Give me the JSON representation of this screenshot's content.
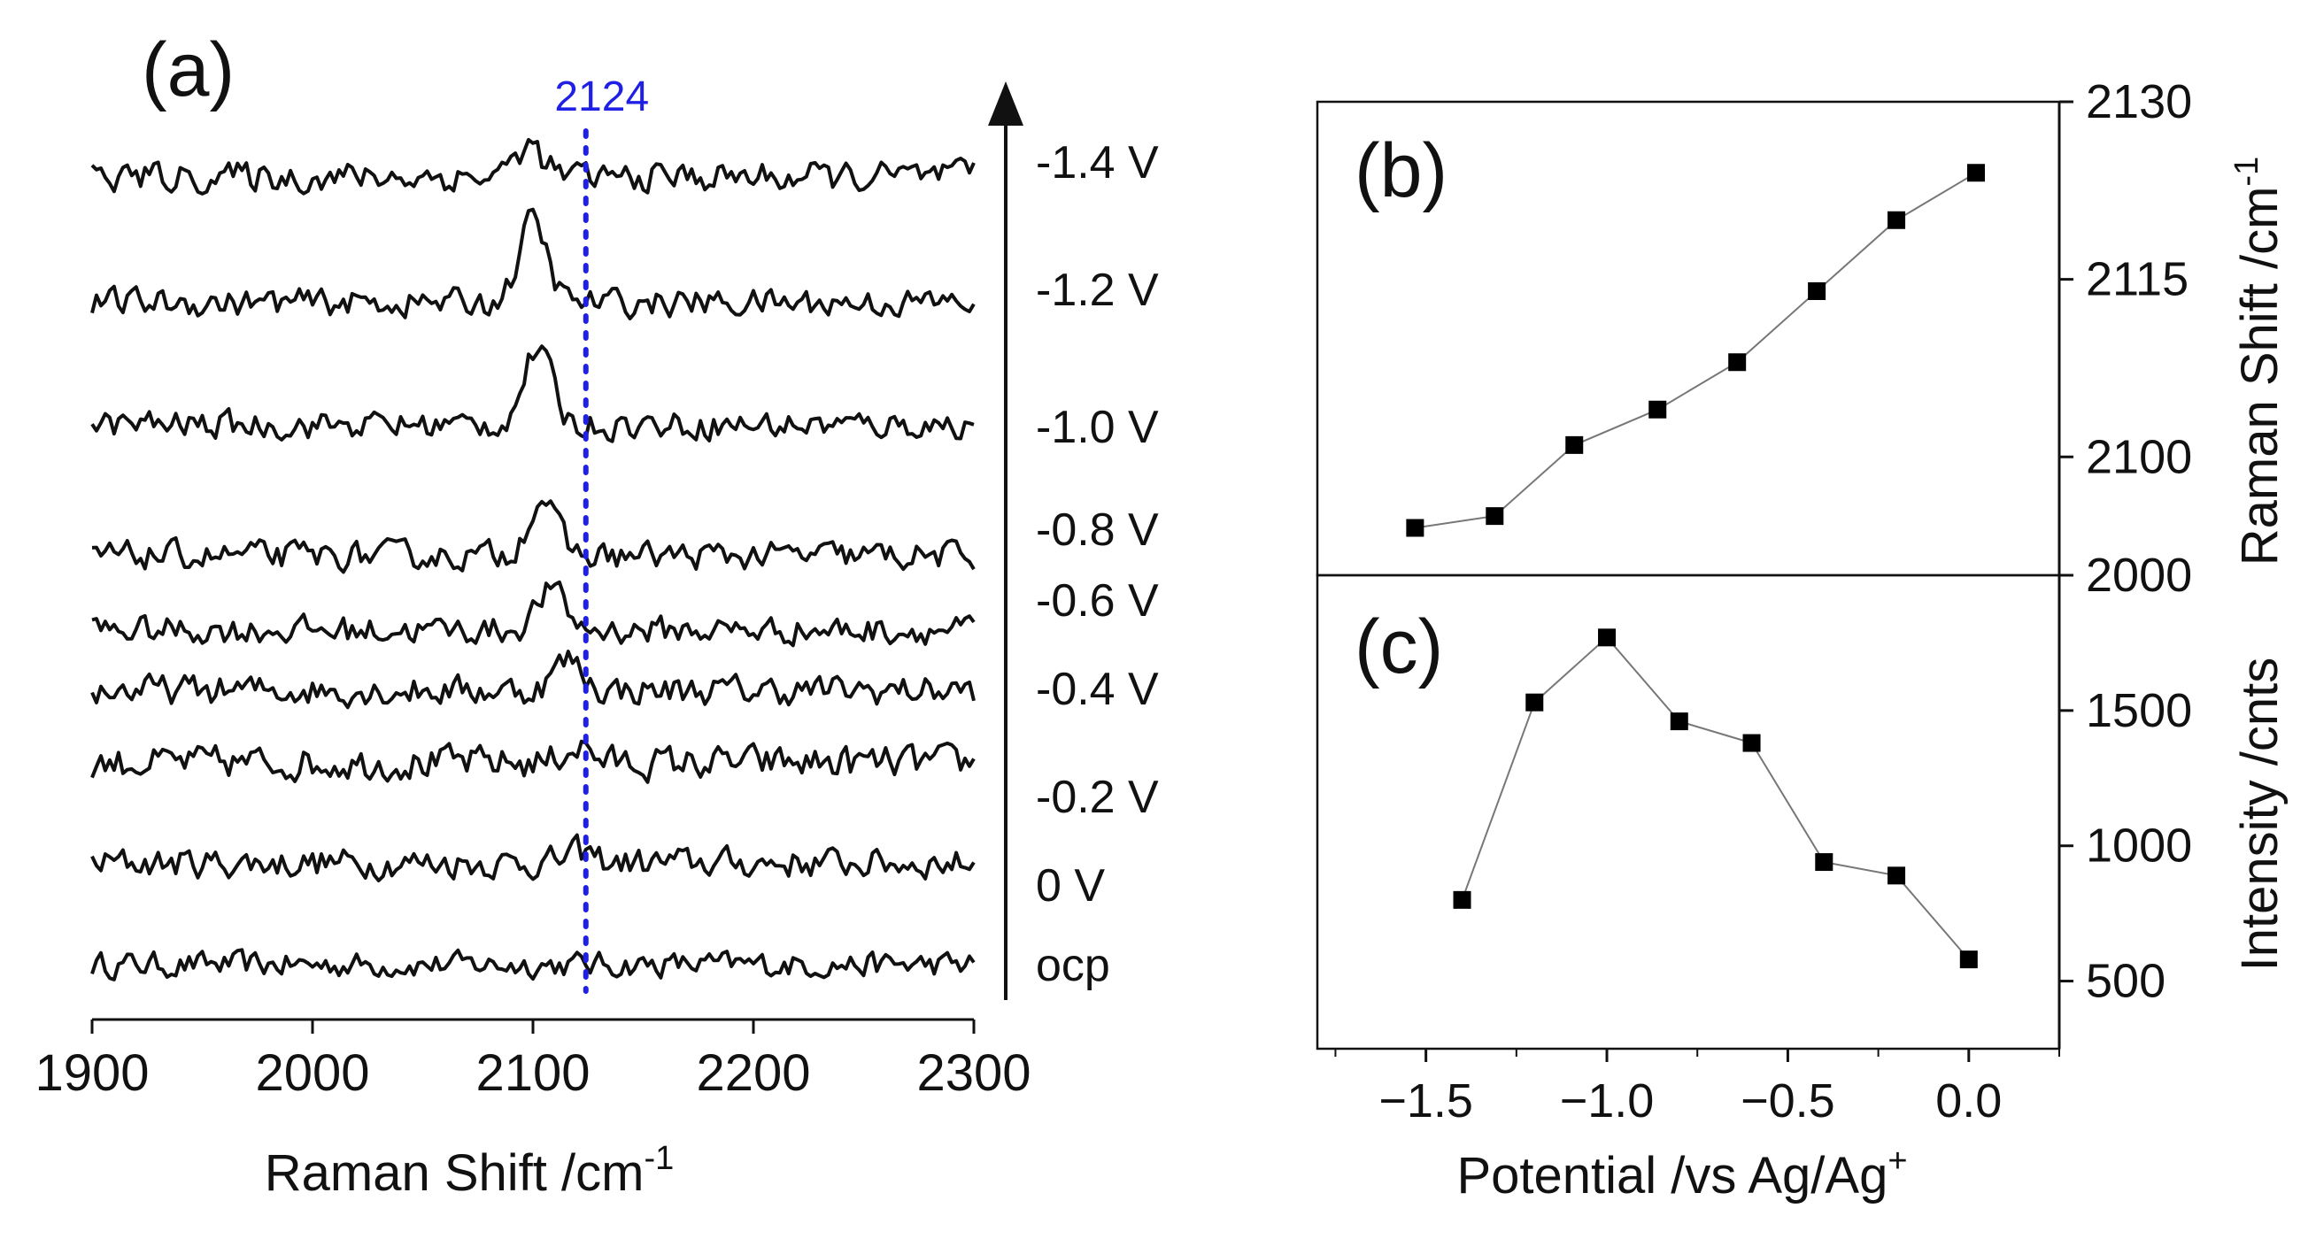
{
  "panel_a": {
    "panel_label": "(a)",
    "xlabel": "Raman Shift /cm",
    "xlabel_sup": "-1",
    "xlim": [
      1900,
      2300
    ],
    "xticks": [
      "1900",
      "2000",
      "2100",
      "2200",
      "2300"
    ],
    "marker": {
      "label": "2124",
      "x": 2124,
      "color": "#1f1fe6"
    },
    "spectra": [
      {
        "label": "ocp",
        "peak_x": 2124,
        "peak_height": 0.0,
        "noise": 0.38
      },
      {
        "label": "0 V",
        "peak_x": 2122,
        "peak_height": 0.3,
        "noise": 0.45
      },
      {
        "label": "-0.2 V",
        "peak_x": 2120,
        "peak_height": 0.5,
        "noise": 0.5
      },
      {
        "label": "-0.4 V",
        "peak_x": 2116,
        "peak_height": 0.9,
        "noise": 0.45
      },
      {
        "label": "-0.6 V",
        "peak_x": 2108,
        "peak_height": 1.2,
        "noise": 0.42
      },
      {
        "label": "-0.8 V",
        "peak_x": 2104,
        "peak_height": 1.7,
        "noise": 0.42
      },
      {
        "label": "-1.0 V",
        "peak_x": 2102,
        "peak_height": 2.2,
        "noise": 0.42
      },
      {
        "label": "-1.2 V",
        "peak_x": 2100,
        "peak_height": 2.4,
        "noise": 0.42
      },
      {
        "label": "-1.4 V",
        "peak_x": 2098,
        "peak_height": 0.9,
        "noise": 0.45
      }
    ]
  },
  "panel_b": {
    "panel_label": "(b)",
    "ylabel": "Raman Shift /cm",
    "ylabel_sup": "-1",
    "ytick_labels": [
      "2130",
      "2115",
      "2100"
    ],
    "ylim": [
      2090,
      2130
    ]
  },
  "panel_c": {
    "panel_label": "(c)",
    "ylabel": "Intensity /cnts",
    "ytick_labels": [
      "2000",
      "1500",
      "1000",
      "500"
    ],
    "ylim": [
      250,
      2000
    ]
  },
  "shared_x": {
    "xlabel": "Potential /vs Ag/Ag",
    "xlabel_sup": "+",
    "xticks": [
      "−1.5",
      "−1.0",
      "−0.5",
      "0.0"
    ],
    "xlim": [
      -1.8,
      0.25
    ]
  },
  "chart_data": [
    {
      "type": "line",
      "title": "(a)",
      "xlabel": "Raman Shift /cm-1",
      "ylabel": "",
      "xlim": [
        1900,
        2300
      ],
      "series": [
        {
          "name": "ocp",
          "peak_center": 2124,
          "relative_peak": 0.0
        },
        {
          "name": "0 V",
          "peak_center": 2122,
          "relative_peak": 0.3
        },
        {
          "name": "-0.2 V",
          "peak_center": 2120,
          "relative_peak": 0.5
        },
        {
          "name": "-0.4 V",
          "peak_center": 2116,
          "relative_peak": 0.9
        },
        {
          "name": "-0.6 V",
          "peak_center": 2108,
          "relative_peak": 1.2
        },
        {
          "name": "-0.8 V",
          "peak_center": 2104,
          "relative_peak": 1.7
        },
        {
          "name": "-1.0 V",
          "peak_center": 2102,
          "relative_peak": 2.2
        },
        {
          "name": "-1.2 V",
          "peak_center": 2100,
          "relative_peak": 2.4
        },
        {
          "name": "-1.4 V",
          "peak_center": 2098,
          "relative_peak": 0.9
        }
      ],
      "annotations": [
        "2124"
      ]
    },
    {
      "type": "line",
      "title": "(b)",
      "xlabel": "Potential /vs Ag/Ag+",
      "ylabel": "Raman Shift /cm-1",
      "xlim": [
        -1.8,
        0.25
      ],
      "ylim": [
        2090,
        2130
      ],
      "x": [
        -1.53,
        -1.31,
        -1.09,
        -0.86,
        -0.64,
        -0.42,
        -0.2,
        0.02
      ],
      "y": [
        2094,
        2095,
        2101,
        2104,
        2108,
        2114,
        2120,
        2124
      ]
    },
    {
      "type": "line",
      "title": "(c)",
      "xlabel": "Potential /vs Ag/Ag+",
      "ylabel": "Intensity /cnts",
      "xlim": [
        -1.8,
        0.25
      ],
      "ylim": [
        250,
        2000
      ],
      "x": [
        -1.4,
        -1.2,
        -1.0,
        -0.8,
        -0.6,
        -0.4,
        -0.2,
        0.0
      ],
      "y": [
        800,
        1530,
        1770,
        1460,
        1380,
        940,
        890,
        580
      ]
    }
  ]
}
